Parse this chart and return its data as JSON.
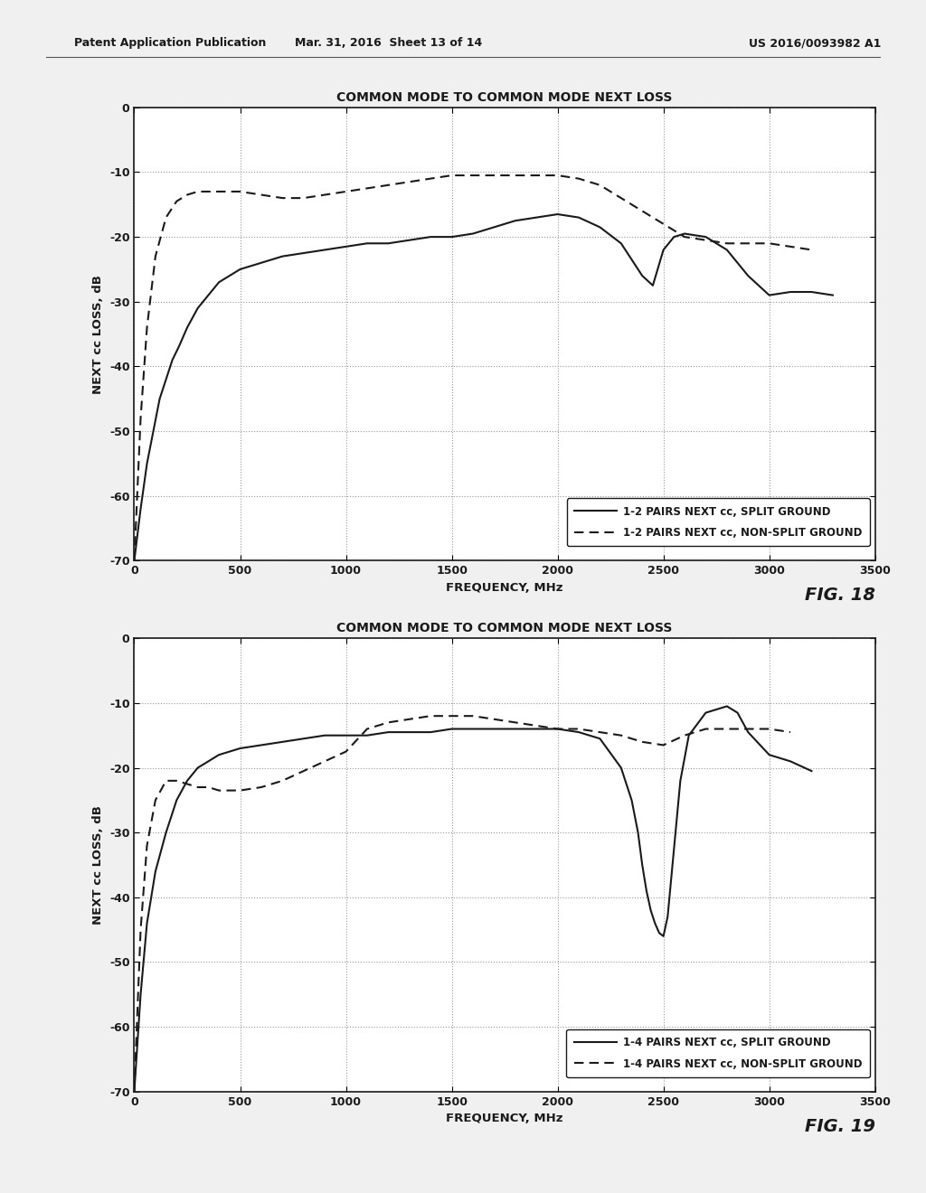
{
  "fig18": {
    "title": "COMMON MODE TO COMMON MODE NEXT LOSS",
    "xlabel": "FREQUENCY, MHz",
    "ylabel": "NEXT cc LOSS, dB",
    "fig_label": "FIG. 18",
    "xlim": [
      0,
      3500
    ],
    "ylim": [
      -70,
      0
    ],
    "xticks": [
      0,
      500,
      1000,
      1500,
      2000,
      2500,
      3000,
      3500
    ],
    "yticks": [
      0,
      -10,
      -20,
      -30,
      -40,
      -50,
      -60,
      -70
    ],
    "ytick_labels": [
      "0",
      "-10",
      "-20",
      "-30",
      "-40",
      "-50",
      "-60",
      "-70"
    ],
    "legend1": "1-2 PAIRS NEXT cc, SPLIT GROUND",
    "legend2": "1-2 PAIRS NEXT cc, NON-SPLIT GROUND",
    "solid_x": [
      0,
      30,
      60,
      90,
      120,
      150,
      180,
      210,
      250,
      300,
      350,
      400,
      500,
      600,
      700,
      800,
      900,
      1000,
      1100,
      1200,
      1300,
      1400,
      1500,
      1600,
      1700,
      1800,
      1900,
      2000,
      2100,
      2200,
      2300,
      2400,
      2450,
      2500,
      2550,
      2600,
      2700,
      2800,
      2900,
      3000,
      3100,
      3200,
      3300
    ],
    "solid_y": [
      -70,
      -62,
      -55,
      -50,
      -45,
      -42,
      -39,
      -37,
      -34,
      -31,
      -29,
      -27,
      -25,
      -24,
      -23,
      -22.5,
      -22,
      -21.5,
      -21,
      -21,
      -20.5,
      -20,
      -20,
      -19.5,
      -18.5,
      -17.5,
      -17,
      -16.5,
      -17,
      -18.5,
      -21,
      -26,
      -27.5,
      -22,
      -20,
      -19.5,
      -20,
      -22,
      -26,
      -29,
      -28.5,
      -28.5,
      -29
    ],
    "dashed_x": [
      0,
      30,
      60,
      100,
      150,
      200,
      250,
      300,
      350,
      400,
      500,
      600,
      700,
      800,
      900,
      1000,
      1100,
      1200,
      1300,
      1400,
      1500,
      1600,
      1700,
      1800,
      1900,
      2000,
      2100,
      2200,
      2300,
      2400,
      2500,
      2600,
      2700,
      2800,
      2900,
      3000,
      3100,
      3200
    ],
    "dashed_y": [
      -70,
      -48,
      -34,
      -23,
      -17,
      -14.5,
      -13.5,
      -13,
      -13,
      -13,
      -13,
      -13.5,
      -14,
      -14,
      -13.5,
      -13,
      -12.5,
      -12,
      -11.5,
      -11,
      -10.5,
      -10.5,
      -10.5,
      -10.5,
      -10.5,
      -10.5,
      -11,
      -12,
      -14,
      -16,
      -18,
      -20,
      -20.5,
      -21,
      -21,
      -21,
      -21.5,
      -22
    ]
  },
  "fig19": {
    "title": "COMMON MODE TO COMMON MODE NEXT LOSS",
    "xlabel": "FREQUENCY, MHz",
    "ylabel": "NEXT cc LOSS, dB",
    "fig_label": "FIG. 19",
    "xlim": [
      0,
      3500
    ],
    "ylim": [
      -70,
      0
    ],
    "xticks": [
      0,
      500,
      1000,
      1500,
      2000,
      2500,
      3000,
      3500
    ],
    "yticks": [
      0,
      -10,
      -20,
      -30,
      -40,
      -50,
      -60,
      -70
    ],
    "ytick_labels": [
      "0",
      "-10",
      "-20",
      "-30",
      "-40",
      "-50",
      "-60",
      "-70"
    ],
    "legend1": "1-4 PAIRS NEXT cc, SPLIT GROUND",
    "legend2": "1-4 PAIRS NEXT cc, NON-SPLIT GROUND",
    "solid_x": [
      0,
      30,
      60,
      100,
      150,
      200,
      250,
      300,
      350,
      400,
      500,
      600,
      700,
      800,
      900,
      1000,
      1100,
      1200,
      1300,
      1400,
      1500,
      1600,
      1700,
      1800,
      1900,
      2000,
      2100,
      2200,
      2300,
      2350,
      2380,
      2400,
      2420,
      2440,
      2460,
      2480,
      2500,
      2520,
      2540,
      2580,
      2620,
      2700,
      2800,
      2850,
      2900,
      3000,
      3100,
      3200
    ],
    "solid_y": [
      -70,
      -55,
      -44,
      -36,
      -30,
      -25,
      -22,
      -20,
      -19,
      -18,
      -17,
      -16.5,
      -16,
      -15.5,
      -15,
      -15,
      -15,
      -14.5,
      -14.5,
      -14.5,
      -14,
      -14,
      -14,
      -14,
      -14,
      -14,
      -14.5,
      -15.5,
      -20,
      -25,
      -30,
      -35,
      -39,
      -42,
      -44,
      -45.5,
      -46,
      -43,
      -36,
      -22,
      -15,
      -11.5,
      -10.5,
      -11.5,
      -14.5,
      -18,
      -19,
      -20.5
    ],
    "dashed_x": [
      0,
      30,
      60,
      100,
      150,
      200,
      250,
      300,
      350,
      400,
      500,
      600,
      700,
      800,
      900,
      1000,
      1100,
      1200,
      1300,
      1400,
      1500,
      1600,
      1700,
      1800,
      1900,
      2000,
      2100,
      2200,
      2300,
      2400,
      2500,
      2600,
      2700,
      2800,
      2900,
      3000,
      3100
    ],
    "dashed_y": [
      -70,
      -45,
      -32,
      -25,
      -22,
      -22,
      -22.5,
      -23,
      -23,
      -23.5,
      -23.5,
      -23,
      -22,
      -20.5,
      -19,
      -17.5,
      -14,
      -13,
      -12.5,
      -12,
      -12,
      -12,
      -12.5,
      -13,
      -13.5,
      -14,
      -14,
      -14.5,
      -15,
      -16,
      -16.5,
      -15,
      -14,
      -14,
      -14,
      -14,
      -14.5
    ]
  },
  "header_left": "Patent Application Publication",
  "header_mid": "Mar. 31, 2016  Sheet 13 of 14",
  "header_right": "US 2016/0093982 A1",
  "bg_color": "#f0f0f0",
  "line_color": "#1a1a1a",
  "grid_color": "#999999",
  "tick_color": "#1a1a1a"
}
